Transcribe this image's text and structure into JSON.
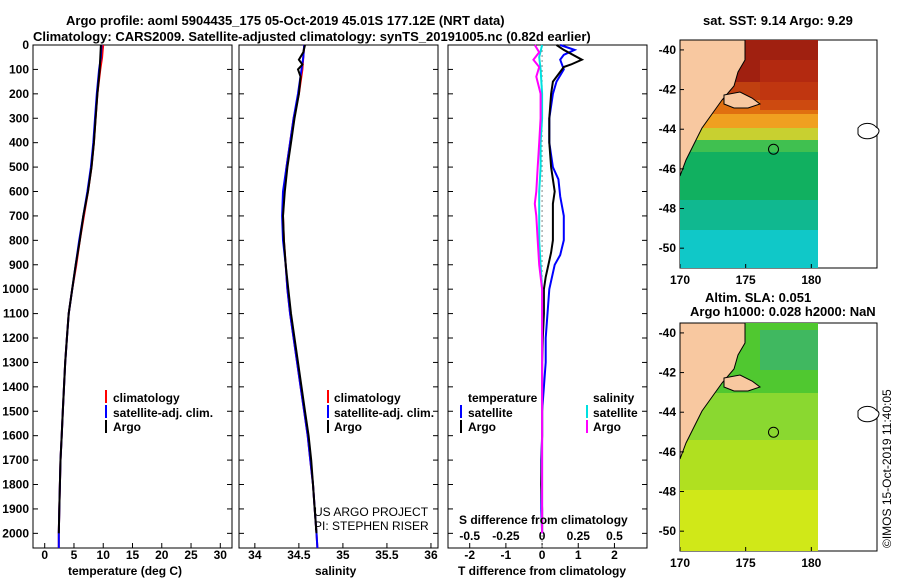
{
  "header": {
    "line1": "Argo profile: aoml 5904435_175 05-Oct-2019 45.01S 177.12E (NRT data)",
    "line2": "Climatology: CARS2009. Satellite-adjusted climatology: synTS_20191005.nc (0.82d earlier)"
  },
  "colors": {
    "climatology": "#ff0000",
    "satellite": "#0000ff",
    "argo": "#000000",
    "sal_sat": "#00e0e0",
    "sal_argo": "#ff00ff",
    "land": "#f8c8a0"
  },
  "depth_axis": {
    "ticks": [
      "0",
      "100",
      "200",
      "300",
      "400",
      "500",
      "600",
      "700",
      "800",
      "900",
      "1000",
      "1100",
      "1200",
      "1300",
      "1400",
      "1500",
      "1600",
      "1700",
      "1800",
      "1900",
      "2000"
    ],
    "range": [
      0,
      2060
    ]
  },
  "temperature_panel": {
    "xlabel": "temperature (deg C)",
    "ticks": [
      "0",
      "5",
      "10",
      "15",
      "20",
      "25",
      "30"
    ],
    "range": [
      -2,
      32
    ],
    "legend": [
      "climatology",
      "satellite-adj. clim.",
      "Argo"
    ],
    "series": [
      {
        "name": "climatology",
        "key": "climatology",
        "points": [
          [
            10.0,
            0
          ],
          [
            9.9,
            20
          ],
          [
            9.8,
            50
          ],
          [
            9.5,
            100
          ],
          [
            9.0,
            200
          ],
          [
            8.7,
            300
          ],
          [
            8.4,
            400
          ],
          [
            8.0,
            500
          ],
          [
            7.4,
            600
          ],
          [
            6.7,
            700
          ],
          [
            6.0,
            800
          ],
          [
            5.4,
            900
          ],
          [
            4.7,
            1000
          ],
          [
            4.1,
            1100
          ],
          [
            3.8,
            1200
          ],
          [
            3.5,
            1300
          ],
          [
            3.3,
            1400
          ],
          [
            3.1,
            1500
          ],
          [
            2.9,
            1600
          ],
          [
            2.7,
            1700
          ],
          [
            2.6,
            1800
          ],
          [
            2.5,
            1900
          ],
          [
            2.4,
            2000
          ],
          [
            2.4,
            2060
          ]
        ]
      },
      {
        "name": "satellite-adj. clim.",
        "key": "satellite",
        "points": [
          [
            9.7,
            0
          ],
          [
            9.6,
            50
          ],
          [
            9.3,
            100
          ],
          [
            8.9,
            200
          ],
          [
            8.6,
            300
          ],
          [
            8.3,
            400
          ],
          [
            7.9,
            500
          ],
          [
            7.3,
            600
          ],
          [
            6.6,
            700
          ],
          [
            5.9,
            800
          ],
          [
            5.3,
            900
          ],
          [
            4.7,
            1000
          ],
          [
            4.1,
            1100
          ],
          [
            3.8,
            1200
          ],
          [
            3.5,
            1300
          ],
          [
            3.3,
            1400
          ],
          [
            3.1,
            1500
          ],
          [
            2.9,
            1600
          ],
          [
            2.7,
            1700
          ],
          [
            2.6,
            1800
          ],
          [
            2.5,
            1900
          ],
          [
            2.4,
            2000
          ],
          [
            2.4,
            2060
          ]
        ]
      },
      {
        "name": "Argo",
        "key": "argo",
        "points": [
          [
            9.6,
            0
          ],
          [
            9.5,
            50
          ],
          [
            9.4,
            100
          ],
          [
            9.0,
            200
          ],
          [
            8.7,
            300
          ],
          [
            8.4,
            400
          ],
          [
            8.0,
            500
          ],
          [
            7.4,
            600
          ],
          [
            6.6,
            700
          ],
          [
            6.0,
            800
          ],
          [
            5.3,
            900
          ],
          [
            4.7,
            1000
          ],
          [
            4.1,
            1100
          ],
          [
            3.8,
            1200
          ],
          [
            3.5,
            1300
          ],
          [
            3.3,
            1400
          ],
          [
            3.1,
            1500
          ],
          [
            2.9,
            1600
          ],
          [
            2.7,
            1700
          ],
          [
            2.6,
            1800
          ],
          [
            2.5,
            1900
          ],
          [
            2.4,
            2000
          ]
        ]
      }
    ]
  },
  "salinity_panel": {
    "xlabel": "salinity",
    "ticks": [
      "34",
      "34.5",
      "35",
      "35.5",
      "36"
    ],
    "tick_values": [
      34,
      34.5,
      35,
      35.5,
      36
    ],
    "range": [
      33.82,
      36.08
    ],
    "legend": [
      "climatology",
      "satellite-adj. clim.",
      "Argo"
    ],
    "credit": [
      "US ARGO PROJECT",
      "PI: STEPHEN RISER"
    ],
    "series": [
      {
        "name": "climatology",
        "key": "climatology",
        "points": [
          [
            34.56,
            0
          ],
          [
            34.55,
            50
          ],
          [
            34.54,
            100
          ],
          [
            34.5,
            200
          ],
          [
            34.44,
            300
          ],
          [
            34.4,
            400
          ],
          [
            34.36,
            500
          ],
          [
            34.33,
            600
          ],
          [
            34.32,
            700
          ],
          [
            34.33,
            800
          ],
          [
            34.35,
            900
          ],
          [
            34.37,
            1000
          ],
          [
            34.4,
            1100
          ],
          [
            34.44,
            1200
          ],
          [
            34.48,
            1300
          ],
          [
            34.52,
            1400
          ],
          [
            34.56,
            1500
          ],
          [
            34.6,
            1600
          ],
          [
            34.63,
            1700
          ],
          [
            34.66,
            1800
          ],
          [
            34.68,
            1900
          ],
          [
            34.7,
            2000
          ],
          [
            34.71,
            2060
          ]
        ]
      },
      {
        "name": "satellite-adj. clim.",
        "key": "satellite",
        "points": [
          [
            34.56,
            0
          ],
          [
            34.55,
            50
          ],
          [
            34.53,
            100
          ],
          [
            34.49,
            200
          ],
          [
            34.44,
            300
          ],
          [
            34.4,
            400
          ],
          [
            34.36,
            500
          ],
          [
            34.32,
            600
          ],
          [
            34.31,
            700
          ],
          [
            34.32,
            800
          ],
          [
            34.35,
            900
          ],
          [
            34.37,
            1000
          ],
          [
            34.4,
            1100
          ],
          [
            34.44,
            1200
          ],
          [
            34.48,
            1300
          ],
          [
            34.52,
            1400
          ],
          [
            34.56,
            1500
          ],
          [
            34.6,
            1600
          ],
          [
            34.63,
            1700
          ],
          [
            34.66,
            1800
          ],
          [
            34.68,
            1900
          ],
          [
            34.7,
            2000
          ],
          [
            34.71,
            2060
          ]
        ]
      },
      {
        "name": "Argo",
        "key": "argo",
        "points": [
          [
            34.57,
            0
          ],
          [
            34.55,
            30
          ],
          [
            34.5,
            60
          ],
          [
            34.54,
            80
          ],
          [
            34.49,
            100
          ],
          [
            34.52,
            130
          ],
          [
            34.5,
            200
          ],
          [
            34.45,
            300
          ],
          [
            34.41,
            400
          ],
          [
            34.37,
            500
          ],
          [
            34.34,
            600
          ],
          [
            34.32,
            700
          ],
          [
            34.33,
            800
          ],
          [
            34.35,
            900
          ],
          [
            34.38,
            1000
          ],
          [
            34.41,
            1100
          ],
          [
            34.45,
            1200
          ],
          [
            34.49,
            1300
          ],
          [
            34.53,
            1400
          ],
          [
            34.57,
            1500
          ],
          [
            34.61,
            1600
          ],
          [
            34.64,
            1700
          ],
          [
            34.66,
            1800
          ],
          [
            34.68,
            1900
          ],
          [
            34.7,
            2000
          ]
        ]
      }
    ]
  },
  "difference_panel": {
    "xlabel": "T difference from climatology",
    "t_ticks": [
      "-2",
      "-1",
      "0",
      "1",
      "2"
    ],
    "t_tick_values": [
      -2,
      -1,
      0,
      1,
      2
    ],
    "t_range": [
      -2.6,
      2.9
    ],
    "s_label": "S difference from climatology",
    "s_ticks": [
      "-0.5",
      "-0.25",
      "0",
      "0.25",
      "0.5"
    ],
    "s_tick_values": [
      -0.5,
      -0.25,
      0,
      0.25,
      0.5
    ],
    "s_range": [
      -0.65,
      0.725
    ],
    "legend_temperature": {
      "title": "temperature",
      "items": [
        "satellite",
        "Argo"
      ]
    },
    "legend_salinity": {
      "title": "salinity",
      "items": [
        "satellite",
        "Argo"
      ]
    },
    "t_series": [
      {
        "name": "T satellite",
        "key": "satellite",
        "points": [
          [
            0.5,
            0
          ],
          [
            0.9,
            20
          ],
          [
            0.6,
            40
          ],
          [
            0.5,
            60
          ],
          [
            0.6,
            100
          ],
          [
            0.4,
            150
          ],
          [
            0.3,
            200
          ],
          [
            0.2,
            300
          ],
          [
            0.2,
            400
          ],
          [
            0.3,
            500
          ],
          [
            0.45,
            550
          ],
          [
            0.5,
            620
          ],
          [
            0.6,
            700
          ],
          [
            0.6,
            800
          ],
          [
            0.5,
            860
          ],
          [
            0.35,
            900
          ],
          [
            0.2,
            1000
          ],
          [
            0.15,
            1100
          ],
          [
            0.1,
            1200
          ],
          [
            0.1,
            1300
          ],
          [
            0.05,
            1400
          ],
          [
            0.0,
            1500
          ],
          [
            0.0,
            1600
          ],
          [
            -0.02,
            1700
          ],
          [
            -0.02,
            1800
          ],
          [
            -0.02,
            1900
          ],
          [
            0.0,
            2000
          ]
        ]
      },
      {
        "name": "T Argo",
        "key": "argo",
        "points": [
          [
            0.4,
            0
          ],
          [
            0.6,
            20
          ],
          [
            1.1,
            60
          ],
          [
            0.8,
            80
          ],
          [
            0.6,
            90
          ],
          [
            0.5,
            110
          ],
          [
            0.3,
            150
          ],
          [
            0.25,
            200
          ],
          [
            0.2,
            300
          ],
          [
            0.2,
            400
          ],
          [
            0.25,
            500
          ],
          [
            0.3,
            550
          ],
          [
            0.35,
            600
          ],
          [
            0.3,
            650
          ],
          [
            0.3,
            800
          ],
          [
            0.25,
            850
          ],
          [
            0.1,
            950
          ],
          [
            0.05,
            1000
          ],
          [
            0.05,
            1100
          ],
          [
            0.02,
            1200
          ],
          [
            0.0,
            1300
          ],
          [
            0.0,
            1400
          ],
          [
            0.0,
            1500
          ],
          [
            0.0,
            1600
          ],
          [
            -0.02,
            1800
          ],
          [
            0.0,
            1900
          ],
          [
            0.0,
            2000
          ]
        ]
      }
    ],
    "s_series": [
      {
        "name": "S satellite",
        "key": "sal_sat",
        "points": [
          [
            0.0,
            0
          ],
          [
            -0.02,
            50
          ],
          [
            -0.01,
            100
          ],
          [
            0.0,
            200
          ],
          [
            0.0,
            300
          ],
          [
            -0.01,
            400
          ],
          [
            -0.01,
            500
          ],
          [
            -0.02,
            600
          ],
          [
            -0.02,
            700
          ],
          [
            -0.02,
            800
          ],
          [
            -0.01,
            900
          ],
          [
            0.0,
            1000
          ],
          [
            0.0,
            1200
          ],
          [
            0.0,
            1400
          ],
          [
            0.0,
            1600
          ],
          [
            0.0,
            1800
          ],
          [
            0.0,
            2000
          ]
        ]
      },
      {
        "name": "S Argo",
        "key": "sal_argo",
        "points": [
          [
            -0.05,
            0
          ],
          [
            -0.02,
            30
          ],
          [
            -0.06,
            60
          ],
          [
            -0.02,
            90
          ],
          [
            -0.04,
            130
          ],
          [
            -0.01,
            200
          ],
          [
            -0.01,
            300
          ],
          [
            -0.02,
            400
          ],
          [
            -0.03,
            500
          ],
          [
            -0.04,
            600
          ],
          [
            -0.05,
            650
          ],
          [
            -0.04,
            700
          ],
          [
            -0.03,
            800
          ],
          [
            -0.02,
            900
          ],
          [
            0.0,
            1000
          ],
          [
            0.0,
            1100
          ],
          [
            0.0,
            1200
          ],
          [
            0.0,
            1300
          ],
          [
            0.0,
            1400
          ],
          [
            0.0,
            1600
          ],
          [
            0.0,
            1800
          ],
          [
            0.0,
            2000
          ]
        ]
      }
    ]
  },
  "sst_map": {
    "title": "sat. SST: 9.14 Argo: 9.29",
    "lat_ticks": [
      "-40",
      "-42",
      "-44",
      "-46",
      "-48",
      "-50"
    ],
    "lat_values": [
      -40,
      -42,
      -44,
      -46,
      -48,
      -50
    ],
    "lat_range": [
      -39.5,
      -51
    ],
    "lon_ticks": [
      "170",
      "175",
      "180"
    ],
    "lon_values": [
      170,
      175,
      180
    ],
    "lon_range": [
      170,
      185
    ],
    "float_position": {
      "lat": -45.01,
      "lon": 177.12
    }
  },
  "sla_map": {
    "title_line1": "Altim. SLA: 0.051",
    "title_line2": "Argo h1000: 0.028 h2000: NaN",
    "lat_ticks": [
      "-40",
      "-42",
      "-44",
      "-46",
      "-48",
      "-50"
    ],
    "lat_values": [
      -40,
      -42,
      -44,
      -46,
      -48,
      -50
    ],
    "lat_range": [
      -39.5,
      -51
    ],
    "lon_ticks": [
      "170",
      "175",
      "180"
    ],
    "lon_values": [
      170,
      175,
      180
    ],
    "lon_range": [
      170,
      185
    ],
    "float_position": {
      "lat": -45.01,
      "lon": 177.12
    }
  },
  "timestamp": "©IMOS 15-Oct-2019 11:40:05"
}
